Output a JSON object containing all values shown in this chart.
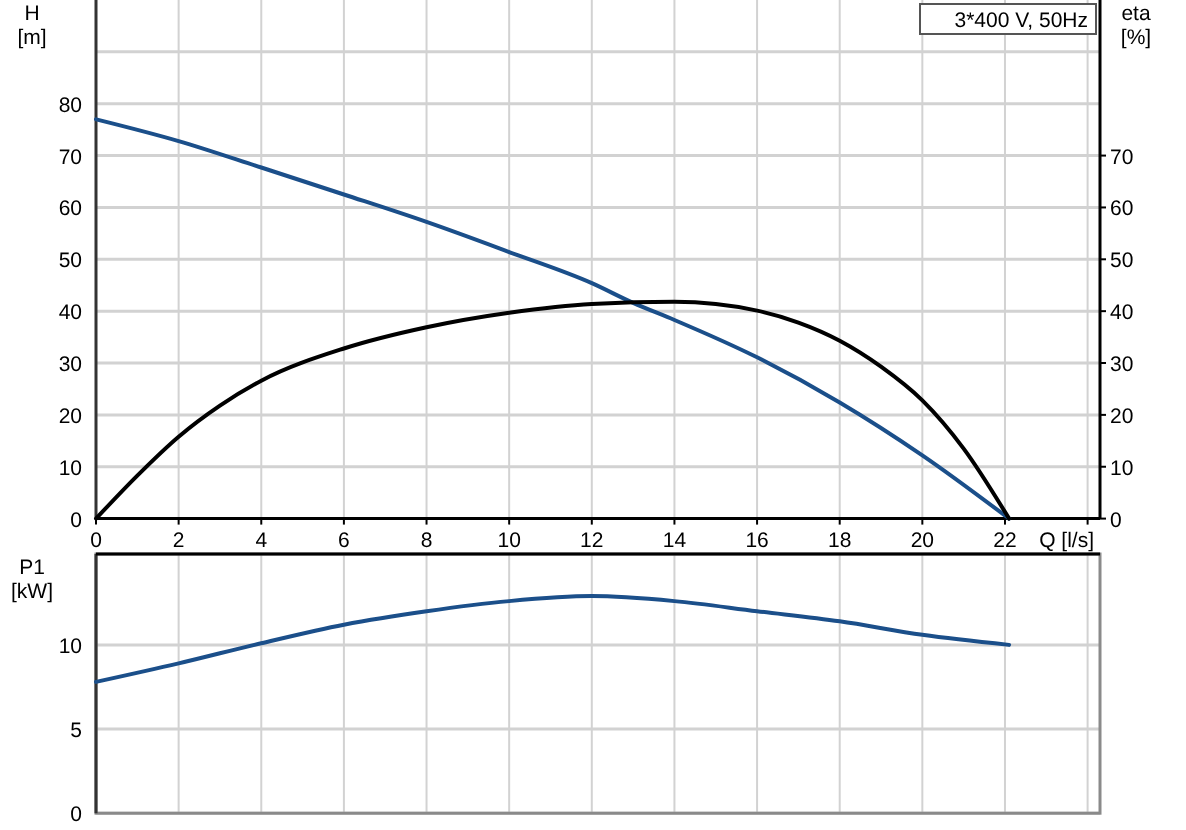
{
  "chart_data": [
    {
      "type": "line",
      "xlabel": "Q [l/s]",
      "ylabel": "H [m]",
      "y2label": "eta [%]",
      "annotations": [
        "3*400 V, 50Hz"
      ],
      "xlim": [
        0,
        24.3
      ],
      "xticks": [
        0,
        2,
        4,
        6,
        8,
        10,
        12,
        14,
        16,
        18,
        20,
        22,
        {
          "value": 24,
          "label": null
        }
      ],
      "ylim": [
        0,
        100
      ],
      "yticks": [
        0,
        10,
        20,
        30,
        40,
        50,
        60,
        70,
        80,
        {
          "value": 90,
          "label": null
        }
      ],
      "y2lim": [
        0,
        100
      ],
      "y2ticks": [
        0,
        10,
        20,
        30,
        40,
        50,
        60,
        70
      ],
      "grid": true,
      "series": [
        {
          "color": "#1b4f8a",
          "x": [
            0,
            2,
            4,
            6,
            8,
            10,
            12,
            13,
            14,
            16,
            18,
            20,
            22.1
          ],
          "values": [
            77,
            72.8,
            67.7,
            62.5,
            57.2,
            51.4,
            45.4,
            41.6,
            38.3,
            31.1,
            22.4,
            12.2,
            0
          ]
        },
        {
          "color": "#000000",
          "axis": "y2",
          "x": [
            0,
            1,
            2,
            3,
            4,
            6,
            8,
            10,
            12,
            14,
            16,
            17,
            18,
            19,
            20,
            21,
            22.1
          ],
          "values": [
            0,
            8.3,
            15.8,
            21.8,
            26.6,
            32.8,
            36.9,
            39.7,
            41.4,
            41.8,
            40.1,
            37.8,
            34.3,
            29.3,
            22.8,
            13.5,
            0
          ]
        }
      ]
    },
    {
      "type": "line",
      "ylabel": "P1 [kW]",
      "tick_labels": "y",
      "xlim": [
        0,
        24.3
      ],
      "xticks": [
        0,
        2,
        4,
        6,
        8,
        10,
        12,
        14,
        16,
        18,
        20,
        22,
        {
          "value": 24,
          "label": null
        }
      ],
      "ylim": [
        0,
        15.4
      ],
      "yticks": [
        0,
        5,
        10
      ],
      "grid": true,
      "series": [
        {
          "color": "#1b4f8a",
          "x": [
            0,
            2,
            4,
            6,
            8,
            10,
            12,
            14,
            16,
            18,
            20,
            22.1
          ],
          "values": [
            7.8,
            8.9,
            10.1,
            11.2,
            12.0,
            12.6,
            12.9,
            12.6,
            12.0,
            11.4,
            10.6,
            10.0
          ]
        }
      ]
    }
  ]
}
